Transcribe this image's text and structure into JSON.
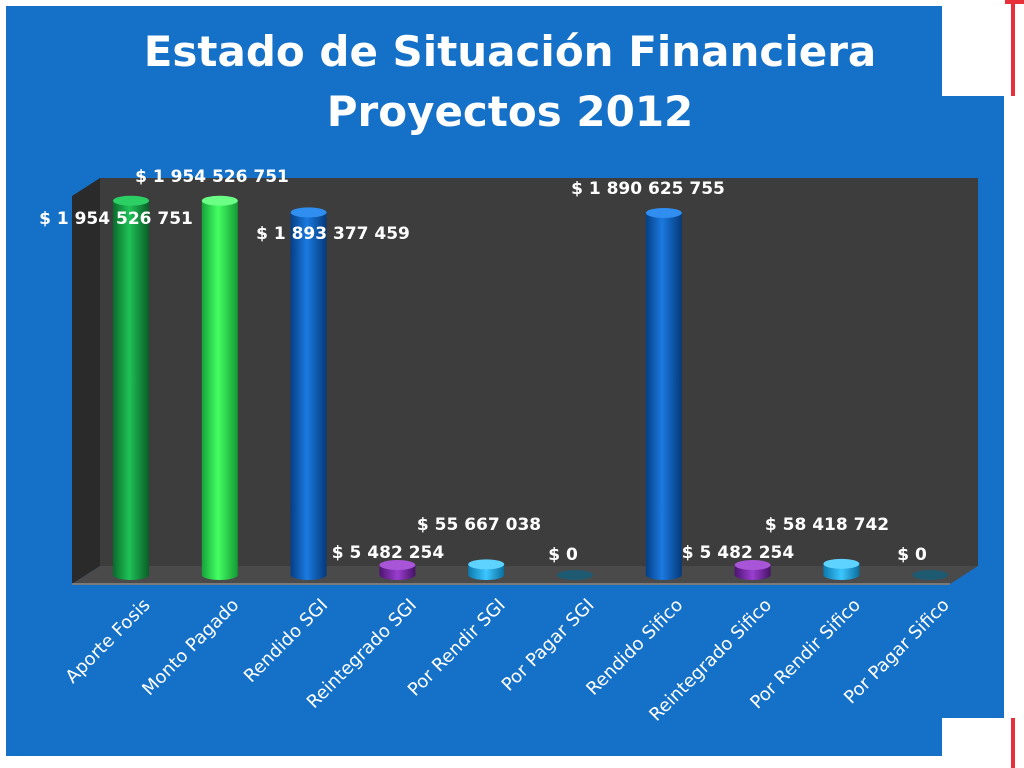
{
  "title_lines": [
    "Estado de Situación Financiera",
    "Proyectos 2012"
  ],
  "colors": {
    "background": "#1570c8",
    "plot": "#3d3d3d",
    "green_dark": "#14a043",
    "green_light": "#2ee64e",
    "blue": "#0a62c4",
    "purple": "#7a2aa8",
    "cyan": "#1aa6e2",
    "teal": "#1e5a72"
  },
  "chart_data": {
    "type": "bar",
    "title": "Estado de Situación Financiera Proyectos 2012",
    "categories": [
      "Aporte Fosis",
      "Monto Pagado",
      "Rendido SGI",
      "Reintegrado SGI",
      "Por Rendir SGI",
      "Por Pagar SGI",
      "Rendido Sifico",
      "Reintegrado Sifico",
      "Por Rendir Sifico",
      "Por Pagar Sifico"
    ],
    "values": [
      1954526751,
      1954526751,
      1893377459,
      5482254,
      55667038,
      0,
      1890625755,
      5482254,
      58418742,
      0
    ],
    "labels": [
      "$ 1 954 526 751",
      "$ 1 954 526 751",
      "$ 1 893 377 459",
      "$ 5 482 254",
      "$ 55 667 038",
      "$ 0",
      "$ 1 890 625 755",
      "$ 5 482 254",
      "$ 58 418 742",
      "$ 0"
    ],
    "bar_colors": [
      "#14a043",
      "#2ee64e",
      "#0a62c4",
      "#7a2aa8",
      "#1aa6e2",
      "#1e5a72",
      "#0a62c4",
      "#7a2aa8",
      "#1aa6e2",
      "#1e5a72"
    ],
    "ylim": [
      0,
      2000000000
    ],
    "grid": false,
    "legend": "none",
    "xlabel": "",
    "ylabel": ""
  }
}
